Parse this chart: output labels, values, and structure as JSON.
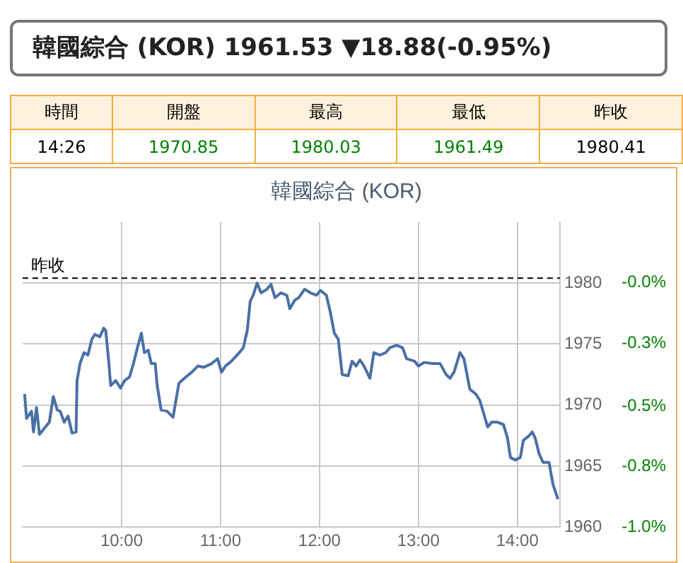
{
  "chart_data": {
    "type": "line",
    "title": "韓國綜合 (KOR)",
    "annotations": [
      "韓國綜合 (KOR)  1961.53 ▼18.88(-0.95%)",
      "時間",
      "開盤",
      "最高",
      "最低",
      "昨收",
      "14:26",
      "1970.85",
      "1980.03",
      "1961.49",
      "1980.41"
    ],
    "x": [
      9.02,
      9.04,
      9.09,
      9.11,
      9.14,
      9.17,
      9.23,
      9.27,
      9.31,
      9.35,
      9.38,
      9.42,
      9.46,
      9.5,
      9.54,
      9.55,
      9.58,
      9.62,
      9.66,
      9.7,
      9.73,
      9.78,
      9.82,
      9.84,
      9.87,
      9.89,
      9.94,
      9.99,
      10.03,
      10.08,
      10.12,
      10.16,
      10.2,
      10.23,
      10.27,
      10.3,
      10.34,
      10.36,
      10.4,
      10.46,
      10.52,
      10.58,
      10.65,
      10.71,
      10.77,
      10.83,
      10.91,
      10.97,
      11.01,
      11.05,
      11.11,
      11.19,
      11.23,
      11.27,
      11.3,
      11.33,
      11.37,
      11.41,
      11.47,
      11.51,
      11.55,
      11.61,
      11.67,
      11.7,
      11.75,
      11.79,
      11.85,
      11.91,
      11.97,
      12.01,
      12.07,
      12.11,
      12.15,
      12.19,
      12.23,
      12.29,
      12.33,
      12.37,
      12.41,
      12.45,
      12.51,
      12.55,
      12.61,
      12.67,
      12.71,
      12.78,
      12.84,
      12.88,
      12.96,
      13.0,
      13.06,
      13.14,
      13.22,
      13.28,
      13.32,
      13.36,
      13.42,
      13.46,
      13.52,
      13.58,
      13.62,
      13.66,
      13.7,
      13.74,
      13.8,
      13.86,
      13.9,
      13.93,
      13.98,
      14.03,
      14.06,
      14.12,
      14.15,
      14.18,
      14.22,
      14.26,
      14.32,
      14.36,
      14.41
    ],
    "series": [
      {
        "color": "#4a70a5",
        "values": [
          1970.9,
          1968.9,
          1969.5,
          1967.8,
          1969.8,
          1967.6,
          1968.2,
          1968.6,
          1970.7,
          1969.6,
          1969.5,
          1968.6,
          1969.1,
          1967.7,
          1967.8,
          1972.0,
          1973.4,
          1974.3,
          1974.1,
          1975.4,
          1975.8,
          1975.6,
          1976.3,
          1976.1,
          1973.6,
          1971.6,
          1972.0,
          1971.4,
          1972.0,
          1972.3,
          1973.4,
          1974.7,
          1975.9,
          1974.3,
          1974.5,
          1973.4,
          1973.4,
          1971.6,
          1969.6,
          1969.5,
          1969.0,
          1971.8,
          1972.3,
          1972.7,
          1973.2,
          1973.1,
          1973.4,
          1973.8,
          1972.7,
          1973.2,
          1973.6,
          1974.3,
          1974.7,
          1976.1,
          1978.5,
          1979.0,
          1980.0,
          1979.2,
          1979.5,
          1979.9,
          1978.8,
          1979.2,
          1979.0,
          1977.9,
          1978.6,
          1978.8,
          1979.5,
          1979.2,
          1979.0,
          1979.4,
          1979.0,
          1977.6,
          1975.9,
          1975.4,
          1972.5,
          1972.4,
          1973.6,
          1973.2,
          1973.7,
          1973.2,
          1972.2,
          1974.3,
          1974.1,
          1974.3,
          1974.7,
          1974.9,
          1974.7,
          1973.8,
          1973.6,
          1973.2,
          1973.5,
          1973.4,
          1973.4,
          1972.5,
          1972.2,
          1972.7,
          1974.3,
          1973.8,
          1971.3,
          1970.9,
          1970.4,
          1969.3,
          1968.2,
          1968.6,
          1968.6,
          1968.4,
          1967.3,
          1965.7,
          1965.5,
          1965.7,
          1967.1,
          1967.5,
          1967.8,
          1967.3,
          1966.0,
          1965.3,
          1965.3,
          1963.5,
          1962.3
        ]
      }
    ],
    "xlim": [
      9.0,
      14.43
    ],
    "xticks": [
      {
        "value": 10,
        "label": "10:00"
      },
      {
        "value": 11,
        "label": "11:00"
      },
      {
        "value": 12,
        "label": "12:00"
      },
      {
        "value": 13,
        "label": "13:00"
      },
      {
        "value": 14,
        "label": "14:00"
      }
    ],
    "ylim": [
      1960,
      1985
    ],
    "yticks": [
      1960,
      1965,
      1970,
      1975,
      1980
    ],
    "y2lim": [
      -1.03,
      0.23
    ],
    "y2ticks": [
      {
        "value": -0.02,
        "label": "-0.0%"
      },
      {
        "value": -0.27,
        "label": "-0.3%"
      },
      {
        "value": -0.53,
        "label": "-0.5%"
      },
      {
        "value": -0.78,
        "label": "-0.8%"
      },
      {
        "value": -1.03,
        "label": "-1.0%"
      }
    ],
    "ref_lines": [
      {
        "axis": "y",
        "value": 1980.41,
        "label": "昨收",
        "color": "#000000",
        "line_style": "dashed"
      }
    ],
    "grid": true,
    "legend": false,
    "marker": "none",
    "line_style": "solid"
  }
}
